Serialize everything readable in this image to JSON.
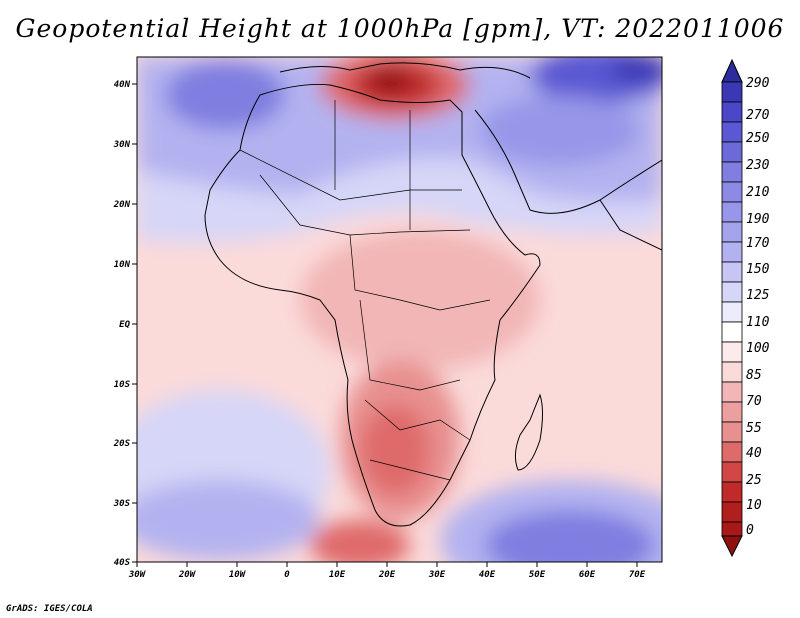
{
  "title": "Geopotential Height at 1000hPa [gpm], VT: 2022011006",
  "footer": "GrADS: IGES/COLA",
  "map": {
    "lon_ticks": [
      "30W",
      "20W",
      "10W",
      "0",
      "10E",
      "20E",
      "30E",
      "40E",
      "50E",
      "60E",
      "70E"
    ],
    "lat_ticks": [
      "40N",
      "30N",
      "20N",
      "10N",
      "EQ",
      "10S",
      "20S",
      "30S",
      "40S"
    ]
  },
  "colorbar": {
    "levels": [
      "290",
      "270",
      "250",
      "230",
      "210",
      "190",
      "170",
      "150",
      "125",
      "110",
      "100",
      "85",
      "70",
      "55",
      "40",
      "25",
      "10",
      "0"
    ],
    "colors": [
      "#2c2c9c",
      "#3a38b4",
      "#4a48c8",
      "#5a58d2",
      "#6c6ad8",
      "#807ee0",
      "#9796e8",
      "#b3b2f0",
      "#d6d6f8",
      "#ffffff",
      "#fbdada",
      "#f2b6b6",
      "#e89090",
      "#df6a6a",
      "#d24646",
      "#c02a2a",
      "#a81818",
      "#901010"
    ]
  }
}
